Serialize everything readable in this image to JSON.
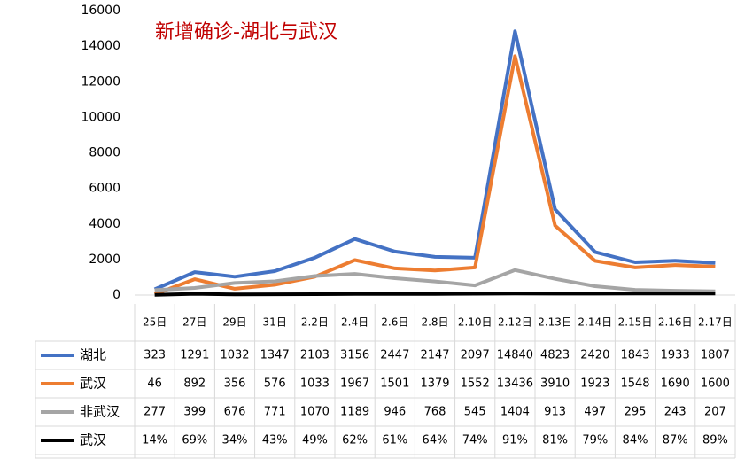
{
  "chart_data": {
    "type": "line",
    "title": "新增确诊-湖北与武汉",
    "categories": [
      "25日",
      "27日",
      "29日",
      "31日",
      "2.2日",
      "2.4日",
      "2.6日",
      "2.8日",
      "2.10日",
      "2.12日",
      "2.13日",
      "2.14日",
      "2.15日",
      "2.16日",
      "2.17日"
    ],
    "series": [
      {
        "name": "湖北",
        "color": "#4472c4",
        "values": [
          323,
          1291,
          1032,
          1347,
          2103,
          3156,
          2447,
          2147,
          2097,
          14840,
          4823,
          2420,
          1843,
          1933,
          1807
        ]
      },
      {
        "name": "武汉",
        "color": "#ed7d31",
        "values": [
          46,
          892,
          356,
          576,
          1033,
          1967,
          1501,
          1379,
          1552,
          13436,
          3910,
          1923,
          1548,
          1690,
          1600
        ]
      },
      {
        "name": "非武汉",
        "color": "#a5a5a5",
        "values": [
          277,
          399,
          676,
          771,
          1070,
          1189,
          946,
          768,
          545,
          1404,
          913,
          497,
          295,
          243,
          207
        ]
      },
      {
        "name": "武汉",
        "color": "#000000",
        "values": [
          14,
          69,
          34,
          43,
          49,
          62,
          61,
          64,
          74,
          91,
          81,
          79,
          84,
          87,
          89
        ],
        "value_labels": [
          "14%",
          "69%",
          "34%",
          "43%",
          "49%",
          "62%",
          "61%",
          "64%",
          "74%",
          "91%",
          "81%",
          "79%",
          "84%",
          "87%",
          "89%"
        ]
      }
    ],
    "ylim": [
      0,
      16000
    ],
    "yticks": [
      0,
      2000,
      4000,
      6000,
      8000,
      10000,
      12000,
      14000,
      16000
    ],
    "grid": false
  }
}
